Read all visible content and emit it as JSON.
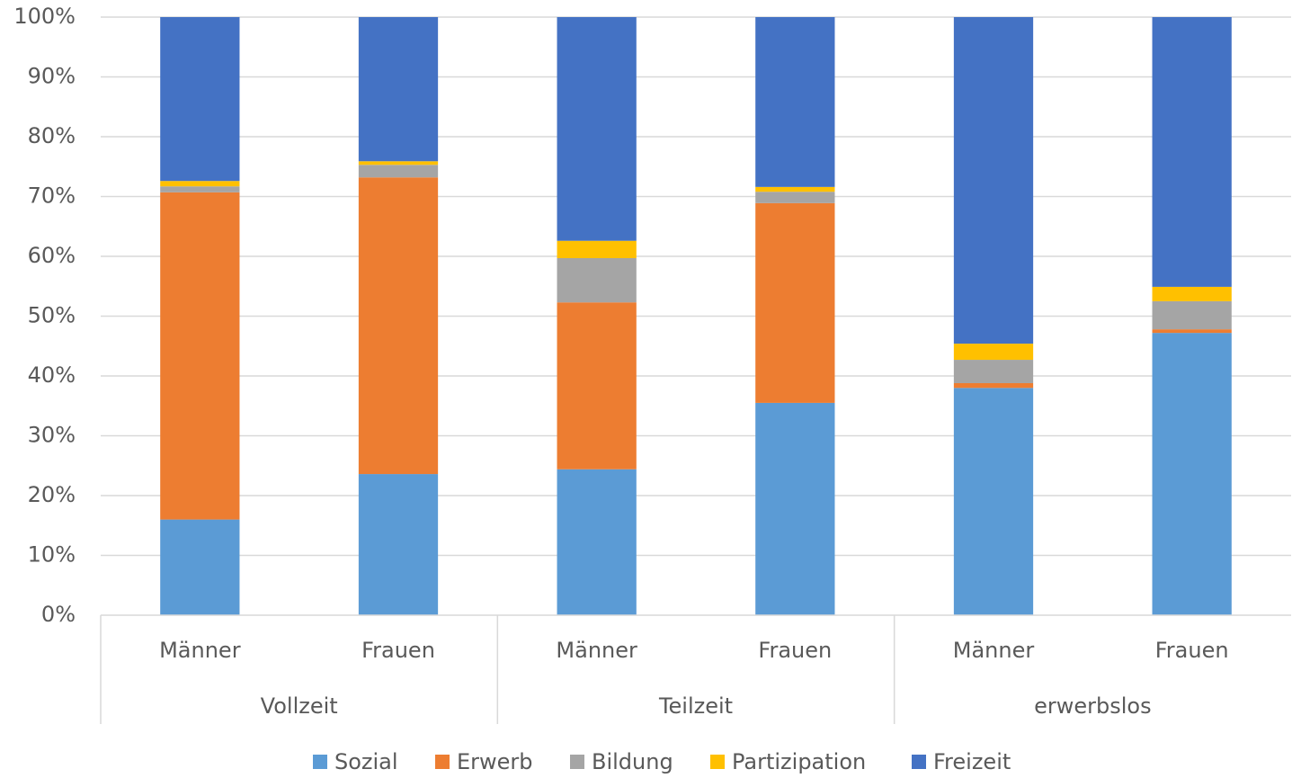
{
  "chart_data": {
    "type": "stacked_bar",
    "categories": [
      "Männer",
      "Frauen",
      "Männer",
      "Frauen",
      "Männer",
      "Frauen"
    ],
    "groups": [
      "Vollzeit",
      "Teilzeit",
      "erwerbslos"
    ],
    "series": [
      {
        "name": "Sozial",
        "color": "#5b9bd5",
        "values": [
          16,
          23.6,
          24.4,
          35.5,
          38,
          47.2
        ]
      },
      {
        "name": "Erwerb",
        "color": "#ed7d31",
        "values": [
          54.7,
          49.6,
          27.9,
          33.4,
          0.8,
          0.6
        ]
      },
      {
        "name": "Bildung",
        "color": "#a5a5a5",
        "values": [
          1,
          2.1,
          7.4,
          1.9,
          3.9,
          4.7
        ]
      },
      {
        "name": "Partizipation",
        "color": "#ffc000",
        "values": [
          0.9,
          0.6,
          2.9,
          0.8,
          2.7,
          2.4
        ]
      },
      {
        "name": "Freizeit",
        "color": "#4472c4",
        "values": [
          27.4,
          24.1,
          37.4,
          28.4,
          54.6,
          45.1
        ]
      }
    ],
    "ylim": [
      0,
      100
    ],
    "yticks": [
      {
        "value": 0,
        "label": "0%"
      },
      {
        "value": 10,
        "label": "10%"
      },
      {
        "value": 20,
        "label": "20%"
      },
      {
        "value": 30,
        "label": "30%"
      },
      {
        "value": 40,
        "label": "40%"
      },
      {
        "value": 50,
        "label": "50%"
      },
      {
        "value": 60,
        "label": "60%"
      },
      {
        "value": 70,
        "label": "70%"
      },
      {
        "value": 80,
        "label": "80%"
      },
      {
        "value": 90,
        "label": "90%"
      },
      {
        "value": 100,
        "label": "100%"
      }
    ],
    "grid": true,
    "legend": "bottom"
  }
}
